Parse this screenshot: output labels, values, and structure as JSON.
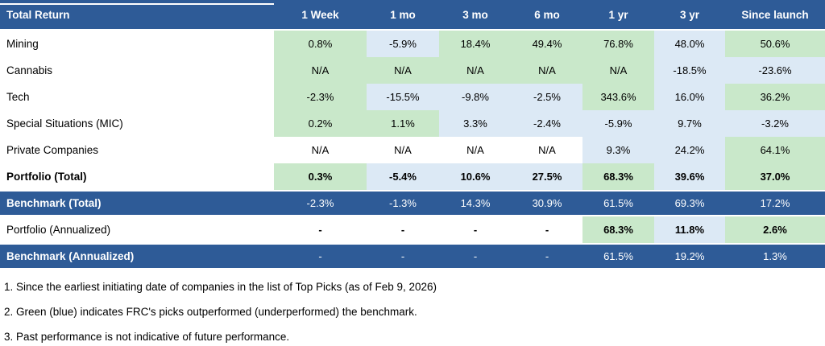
{
  "colors": {
    "header_bg": "#2e5b97",
    "dark_row_bg": "#2e5b97",
    "green": "#c9e8ca",
    "blue": "#dce9f5",
    "white": "#ffffff"
  },
  "chart_data": {
    "type": "table",
    "title": "Total Return",
    "columns": [
      "1 Week",
      "1 mo",
      "3 mo",
      "6 mo",
      "1 yr",
      "3 yr",
      "Since launch"
    ],
    "legend": "green = outperformed benchmark, blue = underperformed benchmark",
    "rows": [
      {
        "label": "Mining",
        "cells": [
          {
            "v": "0.8%",
            "bg": "green"
          },
          {
            "v": "-5.9%",
            "bg": "blue"
          },
          {
            "v": "18.4%",
            "bg": "green"
          },
          {
            "v": "49.4%",
            "bg": "green"
          },
          {
            "v": "76.8%",
            "bg": "green"
          },
          {
            "v": "48.0%",
            "bg": "blue"
          },
          {
            "v": "50.6%",
            "bg": "green"
          }
        ]
      },
      {
        "label": "Cannabis",
        "cells": [
          {
            "v": "N/A",
            "bg": "green"
          },
          {
            "v": "N/A",
            "bg": "green"
          },
          {
            "v": "N/A",
            "bg": "green"
          },
          {
            "v": "N/A",
            "bg": "green"
          },
          {
            "v": "N/A",
            "bg": "green"
          },
          {
            "v": "-18.5%",
            "bg": "blue"
          },
          {
            "v": "-23.6%",
            "bg": "blue"
          }
        ]
      },
      {
        "label": "Tech",
        "cells": [
          {
            "v": "-2.3%",
            "bg": "green"
          },
          {
            "v": "-15.5%",
            "bg": "blue"
          },
          {
            "v": "-9.8%",
            "bg": "blue"
          },
          {
            "v": "-2.5%",
            "bg": "blue"
          },
          {
            "v": "343.6%",
            "bg": "green"
          },
          {
            "v": "16.0%",
            "bg": "blue"
          },
          {
            "v": "36.2%",
            "bg": "green"
          }
        ]
      },
      {
        "label": "Special Situations (MIC)",
        "cells": [
          {
            "v": "0.2%",
            "bg": "green"
          },
          {
            "v": "1.1%",
            "bg": "green"
          },
          {
            "v": "3.3%",
            "bg": "blue"
          },
          {
            "v": "-2.4%",
            "bg": "blue"
          },
          {
            "v": "-5.9%",
            "bg": "blue"
          },
          {
            "v": "9.7%",
            "bg": "blue"
          },
          {
            "v": "-3.2%",
            "bg": "blue"
          }
        ]
      },
      {
        "label": "Private Companies",
        "cells": [
          {
            "v": "N/A",
            "bg": "white"
          },
          {
            "v": "N/A",
            "bg": "white"
          },
          {
            "v": "N/A",
            "bg": "white"
          },
          {
            "v": "N/A",
            "bg": "white"
          },
          {
            "v": "9.3%",
            "bg": "blue"
          },
          {
            "v": "24.2%",
            "bg": "blue"
          },
          {
            "v": "64.1%",
            "bg": "green"
          }
        ]
      },
      {
        "label": "Portfolio (Total)",
        "cells": [
          {
            "v": "0.3%",
            "bg": "green"
          },
          {
            "v": "-5.4%",
            "bg": "blue"
          },
          {
            "v": "10.6%",
            "bg": "blue"
          },
          {
            "v": "27.5%",
            "bg": "blue"
          },
          {
            "v": "68.3%",
            "bg": "green"
          },
          {
            "v": "39.6%",
            "bg": "blue"
          },
          {
            "v": "37.0%",
            "bg": "green"
          }
        ]
      },
      {
        "label": "Benchmark (Total)",
        "cells": [
          {
            "v": "-2.3%"
          },
          {
            "v": "-1.3%"
          },
          {
            "v": "14.3%"
          },
          {
            "v": "30.9%"
          },
          {
            "v": "61.5%"
          },
          {
            "v": "69.3%"
          },
          {
            "v": "17.2%"
          }
        ]
      },
      {
        "label": "Portfolio (Annualized)",
        "cells": [
          {
            "v": "-",
            "bg": "white"
          },
          {
            "v": "-",
            "bg": "white"
          },
          {
            "v": "-",
            "bg": "white"
          },
          {
            "v": "-",
            "bg": "white"
          },
          {
            "v": "68.3%",
            "bg": "green"
          },
          {
            "v": "11.8%",
            "bg": "blue"
          },
          {
            "v": "2.6%",
            "bg": "green"
          }
        ]
      },
      {
        "label": "Benchmark (Annualized)",
        "cells": [
          {
            "v": "-"
          },
          {
            "v": "-"
          },
          {
            "v": "-"
          },
          {
            "v": "-"
          },
          {
            "v": "61.5%"
          },
          {
            "v": "19.2%"
          },
          {
            "v": "1.3%"
          }
        ]
      }
    ],
    "footnotes": [
      "1. Since the earliest initiating date of companies in the list of Top Picks  (as of Feb 9, 2026)",
      "2. Green (blue) indicates FRC's picks outperformed (underperformed) the benchmark.",
      "3. Past performance is not indicative of future performance."
    ]
  }
}
